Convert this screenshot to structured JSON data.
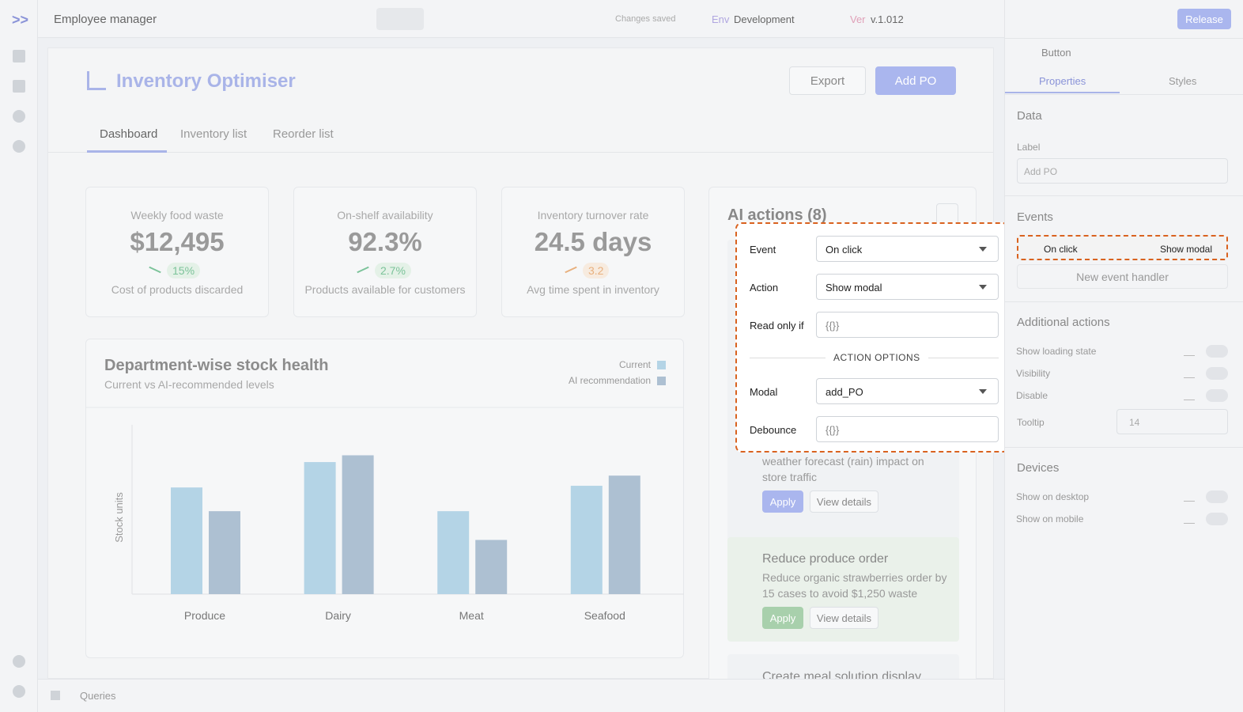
{
  "topbar": {
    "app_name": "Employee manager",
    "saved": "Changes saved",
    "env_label": "Env",
    "env": "Development",
    "ver_label": "Ver",
    "version": "v.1.012",
    "release": "Release"
  },
  "app": {
    "title": "Inventory Optimiser",
    "export": "Export",
    "add": "Add PO",
    "tabs": [
      "Dashboard",
      "Inventory list",
      "Reorder list"
    ]
  },
  "kpis": [
    {
      "label": "Weekly food waste",
      "value": "$12,495",
      "change": "15%",
      "caption": "Cost of products discarded"
    },
    {
      "label": "On-shelf availability",
      "value": "92.3%",
      "change": "2.7%",
      "caption": "Products available for customers"
    },
    {
      "label": "Inventory turnover rate",
      "value": "24.5 days",
      "change": "3.2",
      "caption": "Avg time spent in inventory"
    }
  ],
  "chart_data": {
    "type": "bar",
    "title": "Department-wise stock health",
    "subtitle": "Current vs AI-recommended levels",
    "y_label": "Stock units",
    "categories": [
      "Produce",
      "Dairy",
      "Meat",
      "Seafood"
    ],
    "ylim": [
      0,
      100
    ],
    "series": [
      {
        "name": "Current",
        "color": "#b4d4e6",
        "values": [
          63,
          78,
          49,
          64
        ]
      },
      {
        "name": "AI recommendation",
        "color": "#adc0d2",
        "values": [
          49,
          82,
          32,
          70
        ]
      }
    ]
  },
  "ai_panel": {
    "title": "AI actions (8)",
    "cards": [
      {
        "desc": "weather forecast (rain) impact on store traffic",
        "apply": "Apply",
        "details": "View details"
      },
      {
        "title": "Reduce produce order",
        "desc": "Reduce organic strawberries order by 15 cases to avoid $1,250 waste",
        "apply": "Apply",
        "details": "View details"
      },
      {
        "title": "Create meal solution display"
      }
    ]
  },
  "popup": {
    "rows": [
      {
        "label": "Event",
        "value": "On click"
      },
      {
        "label": "Action",
        "value": "Show modal"
      },
      {
        "label": "Read only if",
        "value": "{{}}"
      }
    ],
    "divider": "ACTION OPTIONS",
    "options": [
      {
        "label": "Modal",
        "value": "add_PO"
      },
      {
        "label": "Debounce",
        "value": "{{}}"
      }
    ]
  },
  "inspector": {
    "component": "Button",
    "tabs": [
      "Properties",
      "Styles"
    ],
    "data_title": "Data",
    "label_title": "Label",
    "label_value": "Add PO",
    "events_title": "Events",
    "handler_event": "On click",
    "handler_action": "Show modal",
    "new_handler": "New event handler",
    "additional_title": "Additional actions",
    "toggles": [
      "Show loading state",
      "Visibility",
      "Disable"
    ],
    "tooltip_label": "Tooltip",
    "tooltip_value": "14",
    "devices_title": "Devices",
    "devices": [
      "Show on desktop",
      "Show on mobile"
    ]
  },
  "bottom": {
    "queries": "Queries"
  }
}
